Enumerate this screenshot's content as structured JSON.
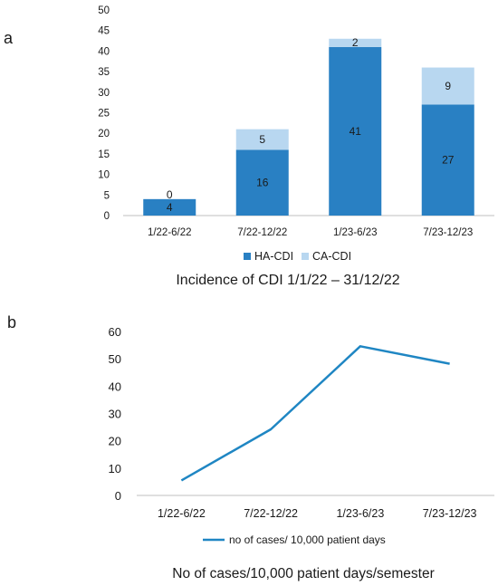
{
  "colors": {
    "ha_cdi": "#2980c3",
    "ca_cdi": "#b8d7f0",
    "line": "#1f86c3",
    "axis": "#bfbfbf",
    "text": "#1a1a1a"
  },
  "chart_data": [
    {
      "panel_label": "a",
      "type": "bar",
      "stacked": true,
      "title": "Incidence of CDI 1/1/22 – 31/12/22",
      "categories": [
        "1/22-6/22",
        "7/22-12/22",
        "1/23-6/23",
        "7/23-12/23"
      ],
      "series": [
        {
          "name": "HA-CDI",
          "values": [
            4,
            16,
            41,
            27
          ]
        },
        {
          "name": "CA-CDI",
          "values": [
            0,
            5,
            2,
            9
          ]
        }
      ],
      "ylim": [
        0,
        50
      ],
      "yticks": [
        0,
        5,
        10,
        15,
        20,
        25,
        30,
        35,
        40,
        45,
        50
      ],
      "grid": false,
      "legend": "bottom"
    },
    {
      "panel_label": "b",
      "type": "line",
      "title": "No of cases/10,000 patient days/semester",
      "categories": [
        "1/22-6/22",
        "7/22-12/22",
        "1/23-6/23",
        "7/23-12/23"
      ],
      "series": [
        {
          "name": "no of cases/ 10,000 patient days",
          "values": [
            5.5,
            24.2,
            54.6,
            48.2
          ]
        }
      ],
      "ylim": [
        0,
        60
      ],
      "yticks": [
        0,
        10,
        20,
        30,
        40,
        50,
        60
      ],
      "grid": false,
      "legend": "bottom"
    }
  ]
}
